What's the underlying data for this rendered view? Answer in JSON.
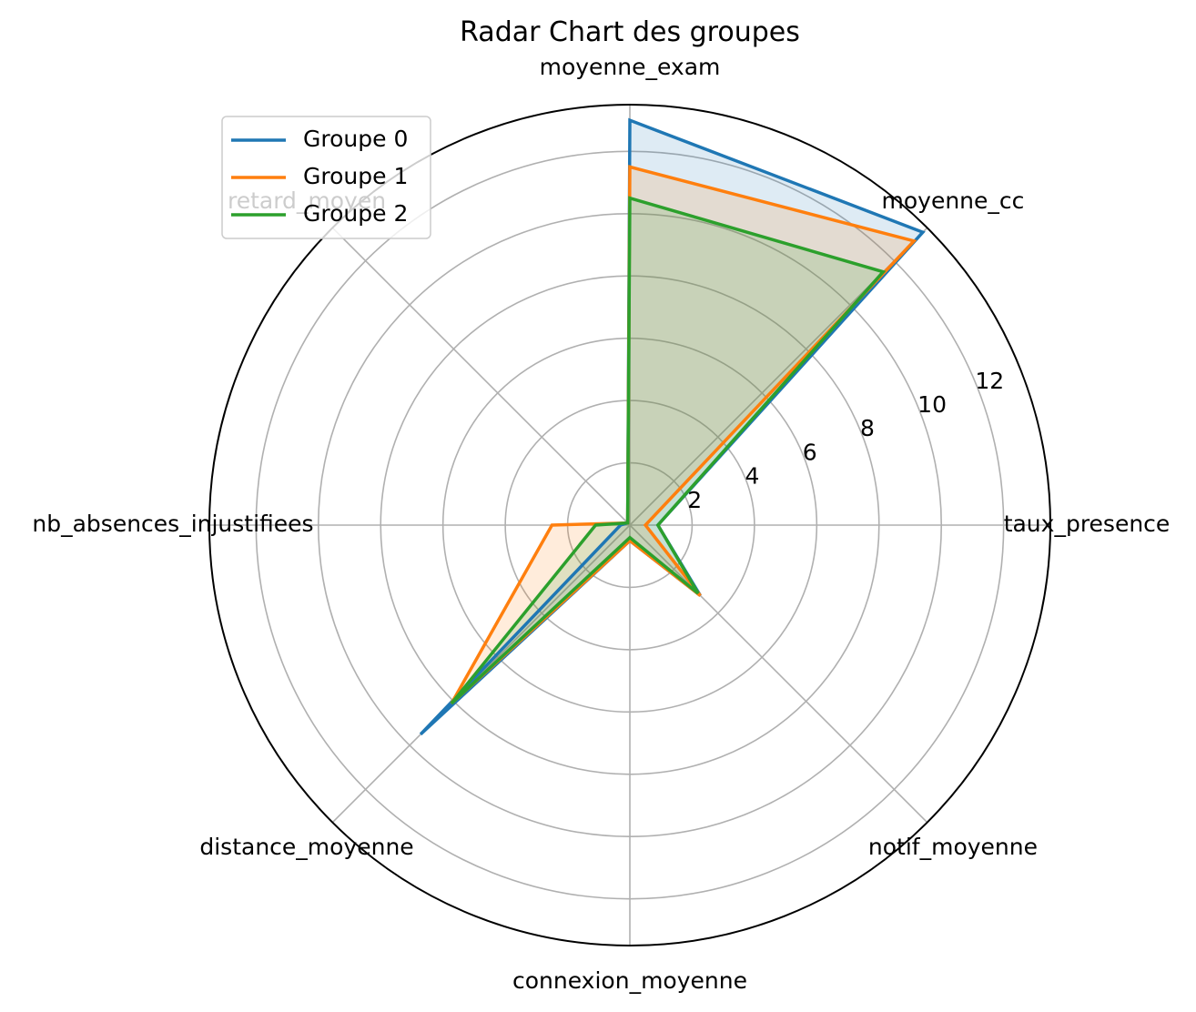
{
  "chart_data": {
    "type": "radar",
    "title": "Radar Chart des groupes",
    "categories": [
      "taux_presence",
      "moyenne_cc",
      "moyenne_exam",
      "retard_moyen",
      "nb_absences_injustifiees",
      "distance_moyenne",
      "connexion_moyenne",
      "notif_moyenne"
    ],
    "radial_ticks": [
      "2",
      "4",
      "6",
      "8",
      "10",
      "12"
    ],
    "radial_tick_values": [
      2,
      4,
      6,
      8,
      10,
      12
    ],
    "rlim": [
      0,
      13.5
    ],
    "grid": true,
    "legend_position": "upper-left",
    "series": [
      {
        "name": "Groupe 0",
        "color": "#1f77b4",
        "values": [
          0.9,
          13.3,
          13.0,
          0.1,
          0.3,
          9.5,
          0.5,
          3.2
        ]
      },
      {
        "name": "Groupe 1",
        "color": "#ff7f0e",
        "values": [
          0.5,
          12.9,
          11.5,
          0.1,
          2.5,
          8.1,
          0.5,
          3.2
        ]
      },
      {
        "name": "Groupe 2",
        "color": "#2ca02c",
        "values": [
          0.9,
          11.5,
          10.5,
          0.1,
          1.1,
          8.1,
          0.4,
          3.1
        ]
      }
    ]
  }
}
